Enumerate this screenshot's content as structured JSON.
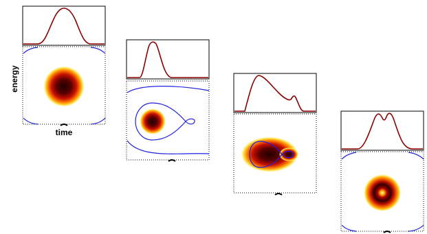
{
  "axis_labels": {
    "y": "energy",
    "x": "time"
  }
}
